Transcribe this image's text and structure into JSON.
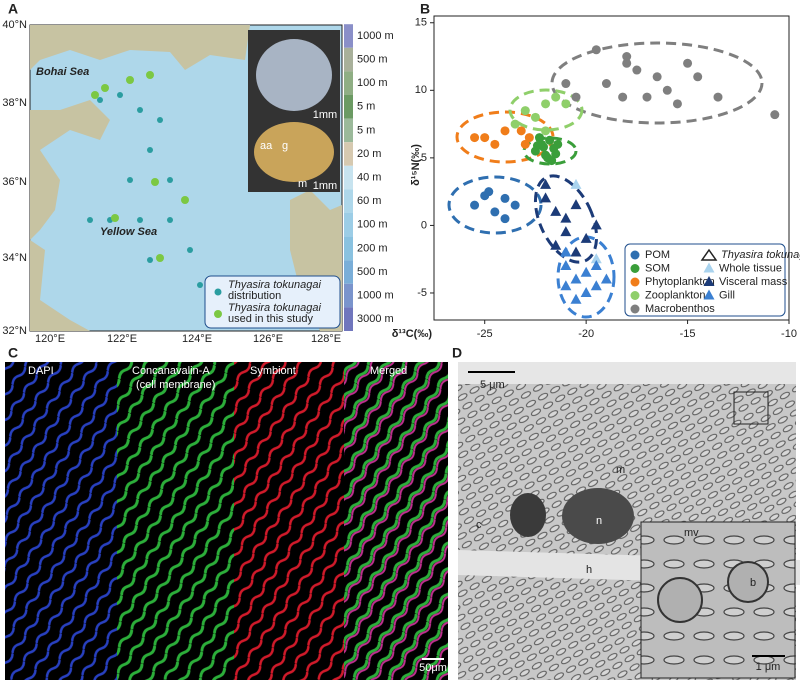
{
  "panel_a": {
    "label": "A",
    "lat_ticks": [
      "40°N",
      "38°N",
      "36°N",
      "34°N",
      "32°N"
    ],
    "lon_ticks": [
      "120°E",
      "122°E",
      "124°E",
      "126°E",
      "128°E"
    ],
    "seas": [
      "Bohai Sea",
      "Yellow Sea"
    ],
    "depth_labels": [
      "1000 m",
      "500 m",
      "100 m",
      "5 m",
      "5 m",
      "20 m",
      "40 m",
      "60 m",
      "100 m",
      "200 m",
      "500 m",
      "1000 m",
      "3000 m"
    ],
    "scale_bars": [
      "1mm",
      "1mm"
    ],
    "anatomy_labels": [
      "aa",
      "g",
      "m"
    ],
    "legend": [
      {
        "species": "Thyasira tokunagai",
        "text": "distribution"
      },
      {
        "species": "Thyasira tokunagai",
        "text": "used in this study"
      }
    ]
  },
  "panel_b": {
    "label": "B"
  },
  "chart_data": {
    "type": "scatter",
    "x_label": "δ¹³C(‰)",
    "y_label": "δ¹⁵N(‰)",
    "xlim": [
      -27.5,
      -10
    ],
    "ylim": [
      -7,
      15.5
    ],
    "xticks": [
      -25,
      -20,
      -15,
      -10
    ],
    "yticks": [
      -5,
      0,
      5,
      10,
      15
    ],
    "legend_group_title": "Thyasira tokunagai",
    "legend_position": "lower right",
    "series": [
      {
        "name": "POM",
        "color": "#2f6fb0",
        "marker": "circle",
        "x": [
          -25.5,
          -24.8,
          -24.5,
          -24,
          -24,
          -23.5,
          -25
        ],
        "y": [
          1.5,
          2.5,
          1,
          0.5,
          2,
          1.5,
          2.2
        ]
      },
      {
        "name": "SOM",
        "color": "#3a9e3a",
        "marker": "circle",
        "x": [
          -22.5,
          -22.2,
          -22,
          -21.8,
          -21.6,
          -21.4,
          -22.3,
          -21.9,
          -21.5,
          -22.1,
          -21.7,
          -22.4
        ],
        "y": [
          5.5,
          6,
          5.2,
          6.3,
          5.7,
          6,
          6.5,
          5,
          5.3,
          5.8,
          4.8,
          5.9
        ]
      },
      {
        "name": "Phytoplankton",
        "color": "#f07d1a",
        "marker": "circle",
        "x": [
          -25.5,
          -25,
          -24.5,
          -24,
          -23.2,
          -23,
          -22.8
        ],
        "y": [
          6.5,
          6.5,
          6,
          7,
          7,
          6,
          6.5
        ]
      },
      {
        "name": "Zooplankton",
        "color": "#8fcf6a",
        "marker": "circle",
        "x": [
          -23,
          -22.5,
          -22,
          -21.5,
          -22,
          -23.5,
          -21
        ],
        "y": [
          8.5,
          8,
          9,
          9.5,
          7,
          7.5,
          9
        ]
      },
      {
        "name": "Macrobenthos",
        "color": "#7f7f7f",
        "marker": "circle",
        "x": [
          -19.5,
          -18,
          -19,
          -17.5,
          -18.2,
          -16,
          -15,
          -14.5,
          -13.5,
          -16.5,
          -20.5,
          -21,
          -17,
          -10.7,
          -18,
          -15.5
        ],
        "y": [
          13,
          12,
          10.5,
          11.5,
          9.5,
          10,
          12,
          11,
          9.5,
          11,
          9.5,
          10.5,
          9.5,
          8.2,
          12.5,
          9
        ]
      },
      {
        "name": "Whole tissue",
        "color": "#a9d3ee",
        "marker": "triangle",
        "x": [
          -20.5,
          -19.5
        ],
        "y": [
          3,
          -2.5
        ]
      },
      {
        "name": "Visceral mass",
        "color": "#1c3b78",
        "marker": "triangle",
        "x": [
          -22,
          -21.5,
          -21,
          -20.5,
          -21,
          -20,
          -20.5,
          -19.5,
          -21.5,
          -22
        ],
        "y": [
          2,
          1,
          0.5,
          1.5,
          -0.5,
          -1,
          -2,
          0,
          -1.5,
          3
        ]
      },
      {
        "name": "Gill",
        "color": "#3b80d2",
        "marker": "triangle",
        "x": [
          -21,
          -20.5,
          -20,
          -19.5,
          -20,
          -19,
          -21,
          -20.5,
          -19.5,
          -21
        ],
        "y": [
          -3,
          -4,
          -3.5,
          -4.5,
          -5,
          -4,
          -4.5,
          -5.5,
          -3,
          -2
        ]
      }
    ]
  },
  "panel_c": {
    "label": "C",
    "channels": [
      "DAPI",
      "Concanavalin-A",
      "Symbiont",
      "Merged"
    ],
    "channel_note": "(cell membrane)",
    "scale_bar": "50μm"
  },
  "panel_d": {
    "label": "D",
    "scale_bar": "5 μm",
    "labels": [
      "m",
      "c",
      "n",
      "h"
    ],
    "inset_labels": [
      "mv",
      "b"
    ],
    "inset_scale_bar": "1 μm"
  }
}
